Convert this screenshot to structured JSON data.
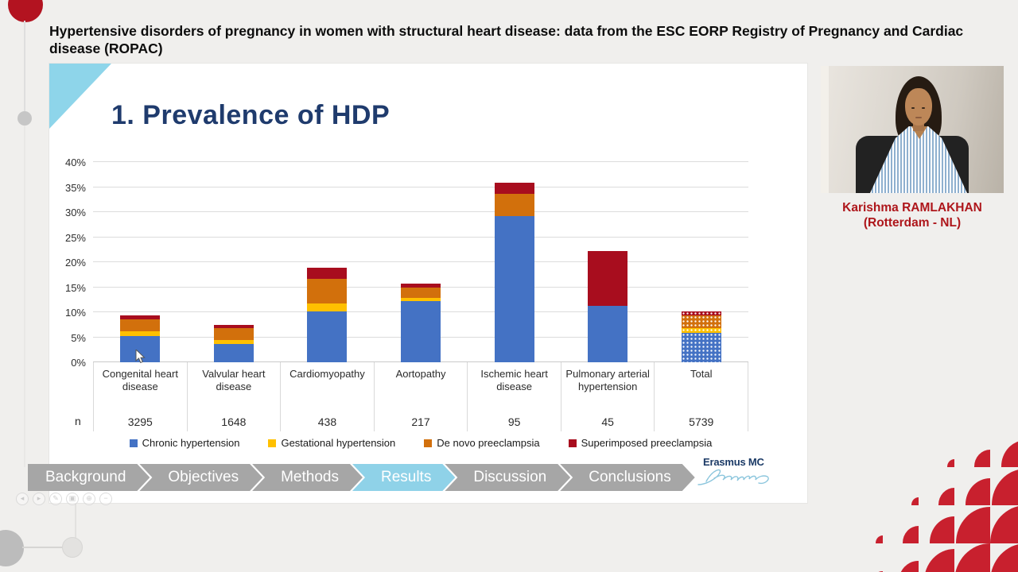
{
  "header": {
    "title": "Hypertensive disorders of pregnancy in women with structural heart disease: data from the ESC EORP Registry of Pregnancy and Cardiac disease (ROPAC)"
  },
  "slide": {
    "title": "1. Prevalence of HDP"
  },
  "speaker": {
    "name": "Karishma RAMLAKHAN",
    "location": "(Rotterdam - NL)"
  },
  "logo": {
    "text": "Erasmus MC"
  },
  "nav": {
    "items": [
      {
        "label": "Background",
        "active": false
      },
      {
        "label": "Objectives",
        "active": false
      },
      {
        "label": "Methods",
        "active": false
      },
      {
        "label": "Results",
        "active": true
      },
      {
        "label": "Discussion",
        "active": false
      },
      {
        "label": "Conclusions",
        "active": false
      }
    ]
  },
  "toolbar": {
    "icons": [
      {
        "name": "prev-icon",
        "glyph": "◂"
      },
      {
        "name": "next-icon",
        "glyph": "▸"
      },
      {
        "name": "pen-icon",
        "glyph": "✎"
      },
      {
        "name": "snapshot-icon",
        "glyph": "▣"
      },
      {
        "name": "zoom-icon",
        "glyph": "⊕"
      },
      {
        "name": "minimize-icon",
        "glyph": "−"
      }
    ]
  },
  "colors": {
    "page_bg": "#f0efed",
    "slide_bg": "#ffffff",
    "accent_light_blue": "#8fd2e8",
    "nav_gray": "#a6a6a6",
    "title_navy": "#1f3b6d",
    "speaker_red": "#ae161b",
    "deco_red": "#c8202e",
    "timeline_red": "#b31320"
  },
  "chart_data": {
    "type": "bar",
    "stacked": true,
    "title": "1. Prevalence of HDP",
    "categories": [
      "Congenital heart disease",
      "Valvular heart disease",
      "Cardiomyopathy",
      "Aortopathy",
      "Ischemic heart disease",
      "Pulmonary arterial hypertension",
      "Total"
    ],
    "n_label": "n",
    "n_values": [
      "3295",
      "1648",
      "438",
      "217",
      "95",
      "45",
      "5739"
    ],
    "series": [
      {
        "name": "Chronic hypertension",
        "color": "#4472c4",
        "values": [
          5.2,
          3.7,
          10.2,
          12.2,
          29.2,
          11.2,
          5.8
        ]
      },
      {
        "name": "Gestational hypertension",
        "color": "#ffc000",
        "values": [
          1.0,
          0.8,
          1.5,
          0.6,
          0,
          0,
          1.1
        ]
      },
      {
        "name": "De novo preeclampsia",
        "color": "#d2700c",
        "values": [
          2.3,
          2.3,
          5.0,
          2.1,
          4.4,
          0,
          2.4
        ]
      },
      {
        "name": "Superimposed preeclampsia",
        "color": "#a80d1e",
        "values": [
          0.8,
          0.6,
          2.2,
          0.8,
          2.2,
          11.0,
          0.9
        ]
      }
    ],
    "axis": {
      "min": 0,
      "max": 40,
      "step": 5,
      "unit": "%"
    },
    "grid": true,
    "legend_position": "bottom",
    "patterned_categories": [
      "Total"
    ]
  },
  "deco": {
    "rows": [
      [
        0,
        0,
        0.2,
        0.45,
        0.7,
        0.95
      ],
      [
        0,
        0.2,
        0.45,
        0.7,
        0.95,
        1
      ],
      [
        0.2,
        0.45,
        0.7,
        0.95,
        1,
        1
      ],
      [
        0.28,
        0.55,
        0.85,
        1,
        1,
        1
      ]
    ]
  }
}
